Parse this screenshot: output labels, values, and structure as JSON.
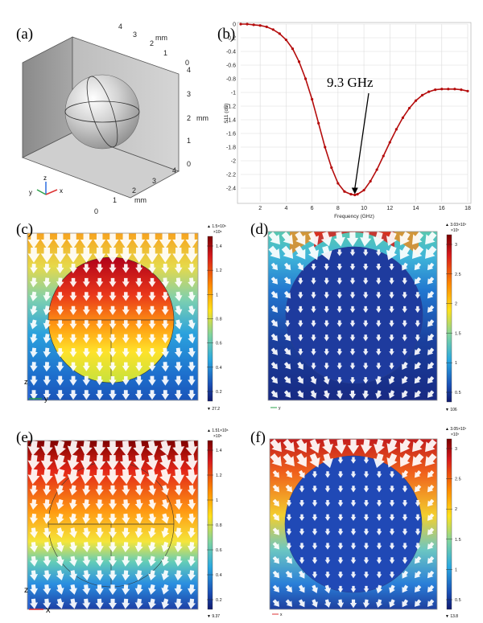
{
  "panels": {
    "a": {
      "label": "(a)",
      "axis_unit": "mm",
      "ticks_top": [
        "4",
        "3",
        "2",
        "1",
        "0"
      ],
      "ticks_right": [
        "4",
        "3",
        "2",
        "1",
        "0"
      ],
      "ticks_bottom": [
        "0",
        "1",
        "2",
        "3",
        "4"
      ],
      "triad": {
        "x": "x",
        "y": "y",
        "z": "z"
      }
    },
    "b": {
      "label": "(b)",
      "annotation": "9.3 GHz",
      "colors": {
        "line": "#b50d0d",
        "grid": "#dcdcdc"
      }
    },
    "c": {
      "label": "(c)",
      "colorbar_max": "▲ 1.5×10⁶",
      "colorbar_exp": "×10⁶",
      "colorbar_min": "▼ 27.2",
      "ticks": [
        "1.4",
        "1.2",
        "1",
        "0.8",
        "0.6",
        "0.4",
        "0.2"
      ],
      "triad_v": "z",
      "triad_h": "y"
    },
    "d": {
      "label": "(d)",
      "colorbar_max": "▲ 3.03×10⁷",
      "colorbar_exp": "×10⁷",
      "colorbar_min": "▼ 106",
      "ticks": [
        "3",
        "2.5",
        "2",
        "1.5",
        "1",
        "0.5"
      ],
      "triad_h": "y"
    },
    "e": {
      "label": "(e)",
      "colorbar_max": "▲ 1.51×10⁶",
      "colorbar_exp": "×10⁶",
      "colorbar_min": "▼ 9.37",
      "ticks": [
        "1.4",
        "1.2",
        "1",
        "0.8",
        "0.6",
        "0.4",
        "0.2"
      ],
      "triad_v": "z",
      "triad_h": "x"
    },
    "f": {
      "label": "(f)",
      "colorbar_max": "▲ 3.05×10⁷",
      "colorbar_exp": "×10⁷",
      "colorbar_min": "▼ 13.8",
      "ticks": [
        "3",
        "2.5",
        "2",
        "1.5",
        "1",
        "0.5"
      ],
      "triad_h": "x"
    }
  },
  "chart_data": {
    "type": "line",
    "title": "",
    "xlabel": "Frequency (GHz)",
    "ylabel": "S11 (dB)",
    "xlim": [
      0.5,
      18
    ],
    "ylim": [
      -2.6,
      0
    ],
    "xticks": [
      2,
      4,
      6,
      8,
      10,
      12,
      14,
      16,
      18
    ],
    "yticks": [
      0,
      -0.2,
      -0.4,
      -0.6,
      -0.8,
      -1,
      -1.2,
      -1.4,
      -1.6,
      -1.8,
      -2,
      -2.2,
      -2.4
    ],
    "series": [
      {
        "name": "S11",
        "x": [
          0.5,
          1.0,
          1.5,
          2.0,
          2.5,
          3.0,
          3.5,
          4.0,
          4.5,
          5.0,
          5.5,
          6.0,
          6.5,
          7.0,
          7.5,
          8.0,
          8.5,
          9.0,
          9.3,
          9.5,
          10.0,
          10.5,
          11.0,
          11.5,
          12.0,
          12.5,
          13.0,
          13.5,
          14.0,
          14.5,
          15.0,
          15.5,
          16.0,
          16.5,
          17.0,
          17.5,
          18.0
        ],
        "y": [
          0.0,
          0.0,
          -0.01,
          -0.02,
          -0.04,
          -0.08,
          -0.14,
          -0.23,
          -0.36,
          -0.55,
          -0.8,
          -1.1,
          -1.45,
          -1.8,
          -2.1,
          -2.33,
          -2.45,
          -2.49,
          -2.5,
          -2.49,
          -2.43,
          -2.3,
          -2.13,
          -1.93,
          -1.73,
          -1.54,
          -1.37,
          -1.23,
          -1.12,
          -1.04,
          -0.99,
          -0.96,
          -0.95,
          -0.95,
          -0.95,
          -0.96,
          -0.98
        ]
      }
    ],
    "annotation": {
      "text": "9.3 GHz",
      "x": 9.3,
      "y": -2.5
    }
  }
}
